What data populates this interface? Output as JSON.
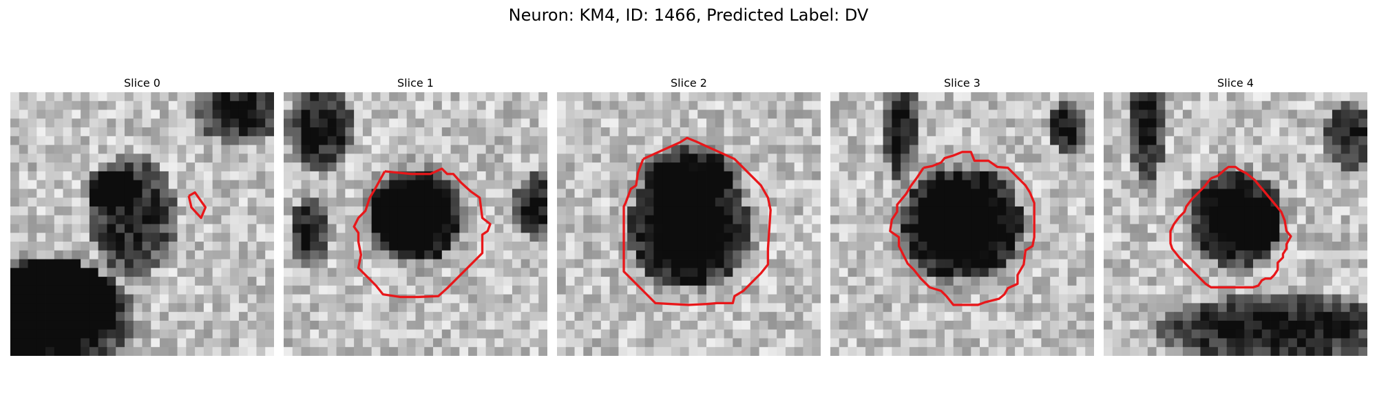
{
  "title": "Neuron: KM4, ID: 1466, Predicted Label: DV",
  "colormap": "gray",
  "outline_color": "#e8171a",
  "grid_size": 30,
  "panels": [
    {
      "title": "Slice 0",
      "dark_blobs": [
        [
          4,
          25.5,
          10,
          6.5,
          0.28
        ],
        [
          26,
          2,
          5,
          4,
          0.1
        ],
        [
          5,
          24,
          7,
          5,
          0.2
        ],
        [
          11.5,
          11,
          3,
          2.5,
          0.22
        ],
        [
          14,
          14,
          5,
          7,
          0.06
        ],
        [
          2,
          27,
          4,
          3,
          0.15
        ]
      ],
      "outline": [
        [
          20.3,
          11.8
        ],
        [
          21,
          11.4
        ],
        [
          22.2,
          13.1
        ],
        [
          21.7,
          14.3
        ],
        [
          20.6,
          13.1
        ],
        [
          20.3,
          11.8
        ]
      ]
    },
    {
      "title": "Slice 1",
      "dark_blobs": [
        [
          15,
          14,
          5.5,
          5.5,
          0.48
        ],
        [
          4,
          4,
          4,
          5,
          0.12
        ],
        [
          29,
          13,
          3,
          4,
          0.1
        ],
        [
          3,
          16,
          2.5,
          4,
          0.08
        ]
      ],
      "outline": [
        [
          11.5,
          9
        ],
        [
          14.5,
          9.3
        ],
        [
          16.7,
          9.3
        ],
        [
          18,
          8.7
        ],
        [
          18.6,
          9.3
        ],
        [
          19.3,
          9.3
        ],
        [
          20.2,
          10.3
        ],
        [
          21.3,
          11.3
        ],
        [
          22.3,
          12
        ],
        [
          22.6,
          14.3
        ],
        [
          23.5,
          15
        ],
        [
          23.2,
          15.8
        ],
        [
          22.6,
          16.2
        ],
        [
          22.6,
          18.3
        ],
        [
          21.6,
          19.3
        ],
        [
          20.6,
          20.3
        ],
        [
          19.6,
          21.3
        ],
        [
          18.6,
          22.3
        ],
        [
          17.6,
          23.2
        ],
        [
          15.3,
          23.3
        ],
        [
          13.3,
          23.3
        ],
        [
          11.3,
          23
        ],
        [
          10.5,
          22
        ],
        [
          9.5,
          21
        ],
        [
          8.5,
          20
        ],
        [
          8.8,
          18.5
        ],
        [
          8.5,
          17
        ],
        [
          8.5,
          16
        ],
        [
          8,
          15.3
        ],
        [
          8.5,
          14.3
        ],
        [
          9.3,
          13.5
        ],
        [
          9.8,
          12
        ],
        [
          10.4,
          11
        ],
        [
          11.5,
          9
        ]
      ]
    },
    {
      "title": "Slice 2",
      "dark_blobs": [
        [
          15,
          15.5,
          7,
          7,
          0.42
        ],
        [
          15,
          9,
          6,
          3,
          0.08
        ]
      ],
      "outline": [
        [
          9.8,
          7.6
        ],
        [
          12,
          6.6
        ],
        [
          14,
          5.7
        ],
        [
          14.8,
          5.2
        ],
        [
          15.8,
          5.6
        ],
        [
          18,
          6.6
        ],
        [
          20.2,
          7.6
        ],
        [
          21.2,
          8.6
        ],
        [
          22.2,
          9.6
        ],
        [
          23.2,
          10.6
        ],
        [
          24,
          12
        ],
        [
          24.3,
          13.4
        ],
        [
          24,
          17.8
        ],
        [
          24,
          19.6
        ],
        [
          23.2,
          20.6
        ],
        [
          22.2,
          21.6
        ],
        [
          21.2,
          22.6
        ],
        [
          20.2,
          23.2
        ],
        [
          20,
          24
        ],
        [
          18.2,
          24
        ],
        [
          17,
          24.1
        ],
        [
          15,
          24.2
        ],
        [
          13,
          24.1
        ],
        [
          11.2,
          24
        ],
        [
          10.2,
          23
        ],
        [
          9.2,
          22
        ],
        [
          8.2,
          21
        ],
        [
          7.6,
          20.4
        ],
        [
          7.6,
          17
        ],
        [
          7.6,
          13
        ],
        [
          7.8,
          12.6
        ],
        [
          8.4,
          11
        ],
        [
          9,
          10.6
        ],
        [
          9.2,
          9.2
        ],
        [
          9.8,
          7.6
        ]
      ]
    },
    {
      "title": "Slice 3",
      "dark_blobs": [
        [
          15,
          15,
          7,
          6.5,
          0.48
        ],
        [
          8,
          4,
          2,
          6,
          0.1
        ],
        [
          27,
          4,
          2.5,
          3,
          0.08
        ]
      ],
      "outline": [
        [
          10.6,
          8.6
        ],
        [
          11.6,
          8.4
        ],
        [
          12.6,
          8
        ],
        [
          13,
          7.5
        ],
        [
          14,
          7.2
        ],
        [
          15,
          6.8
        ],
        [
          16,
          6.8
        ],
        [
          16.4,
          7.8
        ],
        [
          18,
          7.8
        ],
        [
          19,
          8.5
        ],
        [
          20.2,
          8.6
        ],
        [
          21.2,
          9.6
        ],
        [
          22.2,
          10.6
        ],
        [
          22.7,
          11.4
        ],
        [
          23.2,
          12.6
        ],
        [
          23.2,
          16.5
        ],
        [
          23,
          17.5
        ],
        [
          22.2,
          18
        ],
        [
          22,
          19.6
        ],
        [
          21.3,
          20.8
        ],
        [
          21.3,
          21.8
        ],
        [
          20.2,
          22.3
        ],
        [
          19.8,
          23
        ],
        [
          19.2,
          23.5
        ],
        [
          17.6,
          23.9
        ],
        [
          16.8,
          24.2
        ],
        [
          14,
          24.2
        ],
        [
          13.2,
          23.2
        ],
        [
          12.6,
          22.6
        ],
        [
          11.3,
          22.2
        ],
        [
          10.3,
          21.2
        ],
        [
          9.5,
          20.2
        ],
        [
          8.8,
          19.5
        ],
        [
          7.8,
          17.5
        ],
        [
          7.8,
          16.5
        ],
        [
          6.8,
          15.8
        ],
        [
          7,
          14.5
        ],
        [
          7.6,
          13.6
        ],
        [
          7.6,
          12.8
        ],
        [
          8.6,
          11.6
        ],
        [
          9.2,
          10.6
        ],
        [
          9.8,
          9.8
        ],
        [
          10.6,
          8.6
        ]
      ]
    },
    {
      "title": "Slice 4",
      "dark_blobs": [
        [
          15,
          14.5,
          5.5,
          5.5,
          0.32
        ],
        [
          17,
          15,
          3,
          3,
          0.12
        ],
        [
          20,
          27,
          14,
          4,
          0.14
        ],
        [
          5,
          1,
          2,
          10,
          0.14
        ],
        [
          28,
          5,
          3,
          4,
          0.08
        ]
      ],
      "outline": [
        [
          12.2,
          9.8
        ],
        [
          13,
          9.5
        ],
        [
          13.8,
          8.8
        ],
        [
          14.2,
          8.5
        ],
        [
          15,
          8.5
        ],
        [
          15.4,
          8.8
        ],
        [
          16.2,
          9.2
        ],
        [
          17.2,
          10
        ],
        [
          17.6,
          10.5
        ],
        [
          18.2,
          11.2
        ],
        [
          19.2,
          12.4
        ],
        [
          20.2,
          13.6
        ],
        [
          20.6,
          14.6
        ],
        [
          20.8,
          15.8
        ],
        [
          21.3,
          16.4
        ],
        [
          20.8,
          17.3
        ],
        [
          20.8,
          17.8
        ],
        [
          20.4,
          18.4
        ],
        [
          20.4,
          18.8
        ],
        [
          19.8,
          19.4
        ],
        [
          19.8,
          20.2
        ],
        [
          19.4,
          20.8
        ],
        [
          19,
          21.2
        ],
        [
          18.4,
          21.2
        ],
        [
          18,
          21.4
        ],
        [
          17.6,
          22
        ],
        [
          17,
          22.2
        ],
        [
          16.4,
          22.2
        ],
        [
          15.8,
          22.2
        ],
        [
          15.2,
          22.2
        ],
        [
          14.6,
          22.2
        ],
        [
          14,
          22.2
        ],
        [
          13.4,
          22.2
        ],
        [
          12.8,
          22.2
        ],
        [
          12.2,
          22.2
        ],
        [
          11.6,
          21.8
        ],
        [
          11,
          21.2
        ],
        [
          10.4,
          20.6
        ],
        [
          9.6,
          19.8
        ],
        [
          8.6,
          18.8
        ],
        [
          7.8,
          17.8
        ],
        [
          7.6,
          17.2
        ],
        [
          7.6,
          15.8
        ],
        [
          8,
          15
        ],
        [
          8.6,
          14.2
        ],
        [
          9.2,
          13.6
        ],
        [
          9.4,
          13
        ],
        [
          10,
          12.2
        ],
        [
          10.6,
          11.6
        ],
        [
          11.4,
          10.8
        ],
        [
          12.2,
          9.8
        ]
      ]
    }
  ]
}
